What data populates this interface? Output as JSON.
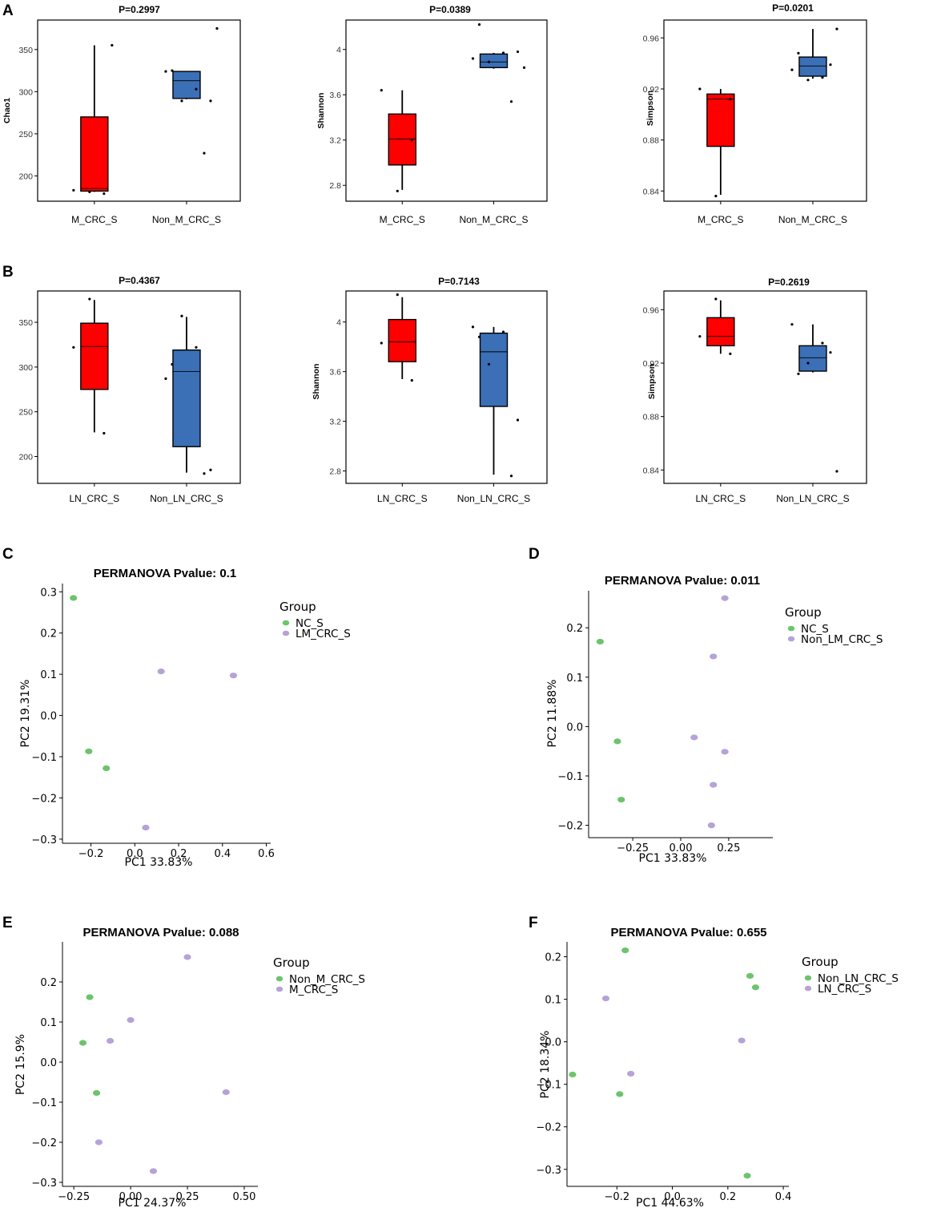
{
  "figure": {
    "colors": {
      "red_box": "#ff0000",
      "blue_box": "#3b6fb6",
      "green_point": "#6cc46c",
      "purple_point": "#b6a2d8"
    }
  },
  "chart_data": [
    {
      "id": "A1",
      "panel_letter": "A",
      "type": "box",
      "title": "P=0.2997",
      "ylabel": "Chao1",
      "ylim": [
        170,
        385
      ],
      "yticks": [
        200,
        250,
        300,
        350
      ],
      "categories": [
        "M_CRC_S",
        "Non_M_CRC_S"
      ],
      "boxes": [
        {
          "name": "M_CRC_S",
          "color": "#ff0000",
          "min": 181,
          "q1": 182,
          "median": 185,
          "q3": 270,
          "max": 355,
          "points": [
            183,
            179,
            181,
            355
          ]
        },
        {
          "name": "Non_M_CRC_S",
          "color": "#3b6fb6",
          "min": 291,
          "q1": 292,
          "median": 313,
          "q3": 324,
          "max": 324,
          "points": [
            324,
            303,
            289,
            227,
            325,
            289,
            375
          ]
        }
      ]
    },
    {
      "id": "A2",
      "panel_letter": "",
      "type": "box",
      "title": "P=0.0389",
      "ylabel": "Shannon",
      "ylim": [
        2.66,
        4.26
      ],
      "yticks": [
        2.8,
        3.2,
        3.6,
        4.0
      ],
      "categories": [
        "M_CRC_S",
        "Non_M_CRC_S"
      ],
      "boxes": [
        {
          "name": "M_CRC_S",
          "color": "#ff0000",
          "min": 2.76,
          "q1": 2.98,
          "median": 3.21,
          "q3": 3.43,
          "max": 3.64,
          "points": [
            3.64,
            3.2,
            2.75
          ]
        },
        {
          "name": "Non_M_CRC_S",
          "color": "#3b6fb6",
          "min": 3.83,
          "q1": 3.84,
          "median": 3.89,
          "q3": 3.96,
          "max": 3.97,
          "points": [
            3.92,
            3.97,
            3.89,
            3.54,
            4.22,
            3.98,
            3.84
          ]
        }
      ]
    },
    {
      "id": "A3",
      "panel_letter": "",
      "type": "box",
      "title": "P=0.0201",
      "ylabel": "Simpson",
      "ylim": [
        0.832,
        0.974
      ],
      "yticks": [
        0.84,
        0.88,
        0.92,
        0.96
      ],
      "categories": [
        "M_CRC_S",
        "Non_M_CRC_S"
      ],
      "boxes": [
        {
          "name": "M_CRC_S",
          "color": "#ff0000",
          "min": 0.837,
          "q1": 0.875,
          "median": 0.912,
          "q3": 0.916,
          "max": 0.92,
          "points": [
            0.92,
            0.912,
            0.836
          ]
        },
        {
          "name": "Non_M_CRC_S",
          "color": "#3b6fb6",
          "min": 0.928,
          "q1": 0.93,
          "median": 0.938,
          "q3": 0.945,
          "max": 0.967,
          "points": [
            0.935,
            0.929,
            0.927,
            0.939,
            0.948,
            0.967
          ]
        }
      ]
    },
    {
      "id": "B1",
      "panel_letter": "B",
      "type": "box",
      "title": "P=0.4367",
      "ylabel": "",
      "ylim": [
        170,
        385
      ],
      "yticks": [
        200,
        250,
        300,
        350
      ],
      "categories": [
        "LN_CRC_S",
        "Non_LN_CRC_S"
      ],
      "boxes": [
        {
          "name": "LN_CRC_S",
          "color": "#ff0000",
          "min": 227,
          "q1": 275,
          "median": 323,
          "q3": 349,
          "max": 375,
          "points": [
            322,
            226,
            376
          ]
        },
        {
          "name": "Non_LN_CRC_S",
          "color": "#3b6fb6",
          "min": 182,
          "q1": 211,
          "median": 295,
          "q3": 319,
          "max": 356,
          "points": [
            287,
            322,
            357,
            181,
            303,
            185
          ]
        }
      ]
    },
    {
      "id": "B2",
      "panel_letter": "",
      "type": "box",
      "title": "P=0.7143",
      "ylabel": "Shannon",
      "ylim": [
        2.7,
        4.25
      ],
      "yticks": [
        2.8,
        3.2,
        3.6,
        4.0
      ],
      "categories": [
        "LN_CRC_S",
        "Non_LN_CRC_S"
      ],
      "boxes": [
        {
          "name": "LN_CRC_S",
          "color": "#ff0000",
          "min": 3.54,
          "q1": 3.68,
          "median": 3.84,
          "q3": 4.02,
          "max": 4.2,
          "points": [
            3.83,
            3.53,
            4.22
          ]
        },
        {
          "name": "Non_LN_CRC_S",
          "color": "#3b6fb6",
          "min": 2.77,
          "q1": 3.32,
          "median": 3.76,
          "q3": 3.91,
          "max": 3.96,
          "points": [
            3.96,
            3.92,
            3.66,
            2.76,
            3.88,
            3.21
          ]
        }
      ]
    },
    {
      "id": "B3",
      "panel_letter": "",
      "type": "box",
      "title": "P=0.2619",
      "ylabel": "Simpson",
      "ylim": [
        0.83,
        0.974
      ],
      "yticks": [
        0.84,
        0.88,
        0.92,
        0.96
      ],
      "categories": [
        "LN_CRC_S",
        "Non_LN_CRC_S"
      ],
      "boxes": [
        {
          "name": "LN_CRC_S",
          "color": "#ff0000",
          "min": 0.927,
          "q1": 0.933,
          "median": 0.94,
          "q3": 0.954,
          "max": 0.967,
          "points": [
            0.94,
            0.927,
            0.968
          ]
        },
        {
          "name": "Non_LN_CRC_S",
          "color": "#3b6fb6",
          "min": 0.913,
          "q1": 0.914,
          "median": 0.924,
          "q3": 0.933,
          "max": 0.949,
          "points": [
            0.949,
            0.935,
            0.92,
            0.928,
            0.912,
            0.839
          ]
        }
      ]
    },
    {
      "id": "C",
      "panel_letter": "C",
      "type": "scatter",
      "title": "PERMANOVA Pvalue: 0.1",
      "xlabel": "PC1 33.83%",
      "ylabel": "PC2 19.31%",
      "xlim": [
        -0.33,
        0.62
      ],
      "ylim": [
        -0.31,
        0.32
      ],
      "xticks": [
        -0.2,
        0.0,
        0.2,
        0.4,
        0.6
      ],
      "xtick_labels": [
        "−0.2",
        "0.0",
        "0.2",
        "0.4",
        "0.6"
      ],
      "yticks": [
        -0.3,
        -0.2,
        -0.1,
        0.0,
        0.1,
        0.2,
        0.3
      ],
      "ytick_labels": [
        "−0.3",
        "−0.2",
        "−0.1",
        "0.0",
        "0.1",
        "0.2",
        "0.3"
      ],
      "legend": {
        "title": "Group",
        "entries": [
          "NC_S",
          "LM_CRC_S"
        ]
      },
      "series": [
        {
          "name": "NC_S",
          "color": "#6cc46c",
          "points": [
            [
              -0.28,
              0.285
            ],
            [
              -0.21,
              -0.087
            ],
            [
              -0.13,
              -0.128
            ]
          ]
        },
        {
          "name": "LM_CRC_S",
          "color": "#b6a2d8",
          "points": [
            [
              0.12,
              0.107
            ],
            [
              0.45,
              0.097
            ],
            [
              0.05,
              -0.272
            ]
          ]
        }
      ]
    },
    {
      "id": "D",
      "panel_letter": "D",
      "type": "scatter",
      "title": "PERMANOVA Pvalue: 0.011",
      "xlabel": "PC1 33.83%",
      "ylabel": "PC2 11.88%",
      "xlim": [
        -0.48,
        0.48
      ],
      "ylim": [
        -0.225,
        0.275
      ],
      "xticks": [
        -0.25,
        0.0,
        0.25
      ],
      "xtick_labels": [
        "−0.25",
        "0.00",
        "0.25"
      ],
      "yticks": [
        -0.2,
        -0.1,
        0.0,
        0.1,
        0.2
      ],
      "ytick_labels": [
        "−0.2",
        "−0.1",
        "0.0",
        "0.1",
        "0.2"
      ],
      "legend": {
        "title": "Group",
        "entries": [
          "NC_S",
          "Non_LM_CRC_S"
        ]
      },
      "series": [
        {
          "name": "NC_S",
          "color": "#6cc46c",
          "points": [
            [
              -0.42,
              0.172
            ],
            [
              -0.33,
              -0.03
            ],
            [
              -0.31,
              -0.148
            ]
          ]
        },
        {
          "name": "Non_LM_CRC_S",
          "color": "#b6a2d8",
          "points": [
            [
              0.23,
              0.26
            ],
            [
              0.17,
              0.142
            ],
            [
              0.07,
              -0.022
            ],
            [
              0.23,
              -0.051
            ],
            [
              0.17,
              -0.118
            ],
            [
              0.16,
              -0.2
            ]
          ]
        }
      ]
    },
    {
      "id": "E",
      "panel_letter": "E",
      "type": "scatter",
      "title": "PERMANOVA Pvalue: 0.088",
      "xlabel": "PC1 24.37%",
      "ylabel": "PC2 15.9%",
      "xlim": [
        -0.3,
        0.56
      ],
      "ylim": [
        -0.31,
        0.3
      ],
      "xticks": [
        -0.25,
        0.0,
        0.25,
        0.5
      ],
      "xtick_labels": [
        "−0.25",
        "0.00",
        "0.25",
        "0.50"
      ],
      "yticks": [
        -0.3,
        -0.2,
        -0.1,
        0.0,
        0.1,
        0.2
      ],
      "ytick_labels": [
        "−0.3",
        "−0.2",
        "−0.1",
        "0.0",
        "0.1",
        "0.2"
      ],
      "legend": {
        "title": "Group",
        "entries": [
          "Non_M_CRC_S",
          "M_CRC_S"
        ]
      },
      "series": [
        {
          "name": "Non_M_CRC_S",
          "color": "#6cc46c",
          "points": [
            [
              -0.18,
              0.162
            ],
            [
              -0.21,
              0.048
            ],
            [
              -0.15,
              -0.077
            ]
          ]
        },
        {
          "name": "M_CRC_S",
          "color": "#b6a2d8",
          "points": [
            [
              0.25,
              0.262
            ],
            [
              0.0,
              0.105
            ],
            [
              -0.09,
              0.053
            ],
            [
              0.42,
              -0.075
            ],
            [
              -0.14,
              -0.2
            ],
            [
              0.1,
              -0.272
            ]
          ]
        }
      ]
    },
    {
      "id": "F",
      "panel_letter": "F",
      "type": "scatter",
      "title": "PERMANOVA Pvalue: 0.655",
      "xlabel": "PC1 44.63%",
      "ylabel": "PC2 18.34%",
      "xlim": [
        -0.38,
        0.42
      ],
      "ylim": [
        -0.34,
        0.235
      ],
      "xticks": [
        -0.2,
        0.0,
        0.2,
        0.4
      ],
      "xtick_labels": [
        "−0.2",
        "0.0",
        "0.2",
        "0.4"
      ],
      "yticks": [
        -0.3,
        -0.2,
        -0.1,
        0.0,
        0.1,
        0.2
      ],
      "ytick_labels": [
        "−0.3",
        "−0.2",
        "−0.1",
        "0.0",
        "0.1",
        "0.2"
      ],
      "legend": {
        "title": "Group",
        "entries": [
          "Non_LN_CRC_S",
          "LN_CRC_S"
        ]
      },
      "series": [
        {
          "name": "Non_LN_CRC_S",
          "color": "#6cc46c",
          "points": [
            [
              -0.17,
              0.215
            ],
            [
              0.28,
              0.155
            ],
            [
              0.3,
              0.128
            ],
            [
              -0.36,
              -0.077
            ],
            [
              -0.19,
              -0.123
            ],
            [
              0.27,
              -0.315
            ]
          ]
        },
        {
          "name": "LN_CRC_S",
          "color": "#b6a2d8",
          "points": [
            [
              -0.24,
              0.102
            ],
            [
              0.25,
              0.003
            ],
            [
              -0.15,
              -0.075
            ]
          ]
        }
      ]
    }
  ]
}
